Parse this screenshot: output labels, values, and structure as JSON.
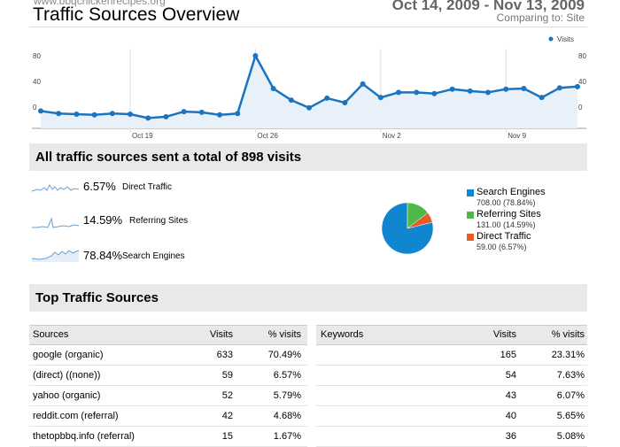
{
  "header": {
    "site": "www.bbqchickenrecipes.org",
    "title": "Traffic Sources Overview",
    "date_range": "Oct 14, 2009 - Nov 13, 2009",
    "comparing": "Comparing to: Site"
  },
  "chart_data": [
    {
      "type": "line",
      "categories": [
        null,
        null,
        null,
        null,
        null,
        "Oct 19",
        null,
        null,
        null,
        null,
        null,
        null,
        "Oct 26",
        null,
        null,
        null,
        null,
        null,
        null,
        "Nov 2",
        null,
        null,
        null,
        null,
        null,
        null,
        "Nov 9",
        null,
        null,
        null,
        null
      ],
      "series": [
        {
          "name": "Visits",
          "color": "#1a74bf",
          "values": [
            12,
            8,
            7,
            6,
            8,
            7,
            1,
            3,
            11,
            10,
            6,
            8,
            98,
            47,
            29,
            17,
            32,
            25,
            54,
            33,
            41,
            41,
            39,
            46,
            43,
            41,
            46,
            47,
            33,
            48,
            50
          ]
        }
      ],
      "ylim": [
        -15,
        109
      ],
      "yticks": [
        0,
        40,
        80
      ],
      "legend": "top-right"
    },
    {
      "type": "pie",
      "title": "All traffic sources sent a total of 898 visits",
      "categories": [
        "Search Engines",
        "Referring Sites",
        "Direct Traffic"
      ],
      "values": [
        708,
        131,
        59
      ],
      "value_labels": [
        "708.00 (78.84%)",
        "131.00 (14.59%)",
        "59.00 (6.57%)"
      ],
      "colors": [
        "#0f86cf",
        "#4fb84d",
        "#e55b2a"
      ]
    }
  ],
  "summary": [
    {
      "percent": "6.57%",
      "label": "Direct Traffic"
    },
    {
      "percent": "14.59%",
      "label": "Referring Sites"
    },
    {
      "percent": "78.84%",
      "label": "Search Engines"
    }
  ],
  "top_sources": {
    "title": "Top Traffic Sources",
    "sources": {
      "columns": [
        "Sources",
        "Visits",
        "% visits"
      ],
      "rows": [
        [
          "google (organic)",
          633,
          "70.49%"
        ],
        [
          "(direct) ((none))",
          59,
          "6.57%"
        ],
        [
          "yahoo (organic)",
          52,
          "5.79%"
        ],
        [
          "reddit.com (referral)",
          42,
          "4.68%"
        ],
        [
          "thetopbbq.info (referral)",
          15,
          "1.67%"
        ]
      ]
    },
    "keywords": {
      "columns": [
        "Keywords",
        "Visits",
        "% visits"
      ],
      "rows": [
        [
          165,
          "23.31%"
        ],
        [
          54,
          "7.63%"
        ],
        [
          43,
          "6.07%"
        ],
        [
          40,
          "5.65%"
        ],
        [
          36,
          "5.08%"
        ]
      ]
    }
  }
}
